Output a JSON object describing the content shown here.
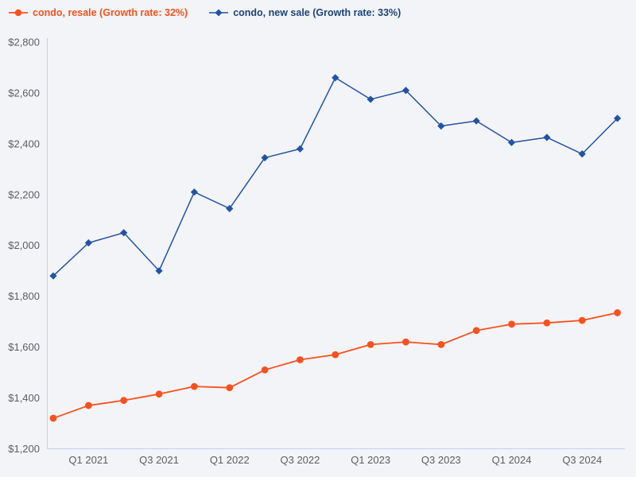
{
  "legend": {
    "items": [
      {
        "label": "condo, resale (Growth rate: 32%)",
        "text_color": "#f4511e",
        "marker_color": "#f7511f",
        "marker": "circle"
      },
      {
        "label": "condo, new sale (Growth rate: 33%)",
        "text_color": "#1d4377",
        "marker_color": "#2253a4",
        "marker": "diamond"
      }
    ]
  },
  "chart_data": {
    "type": "line",
    "x": [
      "Q4 2020",
      "Q1 2021",
      "Q2 2021",
      "Q3 2021",
      "Q4 2021",
      "Q1 2022",
      "Q2 2022",
      "Q3 2022",
      "Q4 2022",
      "Q1 2023",
      "Q2 2023",
      "Q3 2023",
      "Q4 2023",
      "Q1 2024",
      "Q2 2024",
      "Q3 2024",
      "Q4 2024"
    ],
    "x_axis": {
      "tick_labels": [
        "Q1 2021",
        "Q3 2021",
        "Q1 2022",
        "Q3 2022",
        "Q1 2023",
        "Q3 2023",
        "Q1 2024",
        "Q3 2024"
      ],
      "tick_positions": [
        1,
        3,
        5,
        7,
        9,
        11,
        13,
        15
      ]
    },
    "y_axis": {
      "tick_prefix": "$",
      "ticks": [
        1200,
        1400,
        1600,
        1800,
        2000,
        2200,
        2400,
        2600,
        2800
      ]
    },
    "ylim": [
      1200,
      2800
    ],
    "grid": false,
    "legend_position": "top-left",
    "series": [
      {
        "name": "condo, resale",
        "legend_label": "condo, resale (Growth rate: 32%)",
        "growth_rate": "32%",
        "color": "#f7511f",
        "marker": "circle",
        "values": [
          1320,
          1370,
          1390,
          1415,
          1445,
          1440,
          1510,
          1550,
          1570,
          1610,
          1620,
          1610,
          1665,
          1690,
          1695,
          1705,
          1735
        ]
      },
      {
        "name": "condo, new sale",
        "legend_label": "condo, new sale (Growth rate: 33%)",
        "growth_rate": "33%",
        "color": "#2253a4",
        "marker": "diamond",
        "values": [
          1880,
          2010,
          2050,
          1900,
          2210,
          2145,
          2345,
          2380,
          2660,
          2575,
          2610,
          2470,
          2490,
          2405,
          2425,
          2360,
          2500
        ]
      }
    ]
  },
  "colors": {
    "background": "#f3f4f7",
    "axis_line": "#c5d0e8",
    "tick_label": "#5b5e63"
  }
}
